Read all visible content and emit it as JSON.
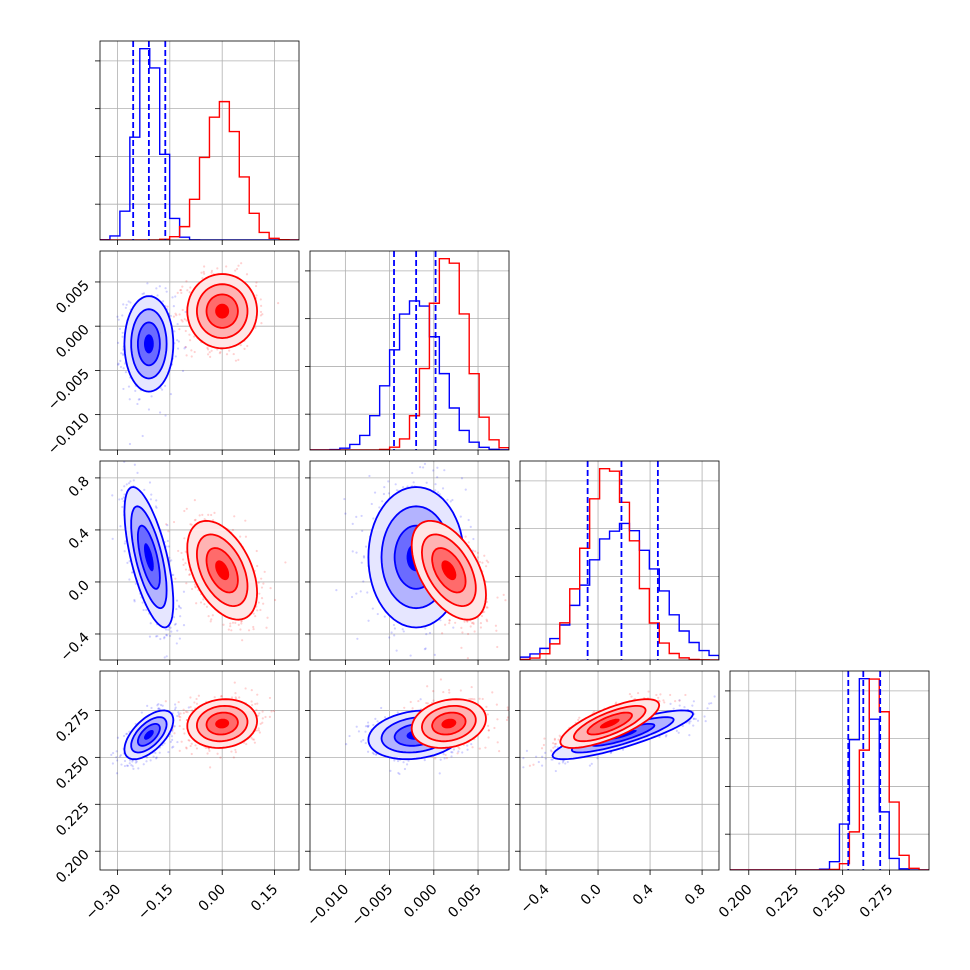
{
  "chart_data": {
    "type": "corner",
    "series": [
      {
        "name": "",
        "color": "#0000ff"
      },
      {
        "name": "",
        "color": "#ff0000"
      }
    ],
    "params": [
      {
        "range": [
          -0.35,
          0.22
        ],
        "ticks": [
          -0.3,
          -0.15,
          0.0,
          0.15
        ],
        "tick_labels": [
          "−0.30",
          "−0.15",
          "0.00",
          "0.15"
        ],
        "blue": {
          "mean": -0.21,
          "sd": 0.035,
          "q": [
            -0.255,
            -0.21,
            -0.163
          ]
        },
        "red": {
          "mean": 0.0,
          "sd": 0.05
        }
      },
      {
        "range": [
          -0.014,
          0.0085
        ],
        "ticks": [
          -0.01,
          -0.005,
          0.0,
          0.005
        ],
        "tick_labels": [
          "−0.010",
          "−0.005",
          "0.000",
          "0.005"
        ],
        "blue": {
          "mean": -0.002,
          "sd": 0.0027,
          "q": [
            -0.0045,
            -0.002,
            0.0002
          ]
        },
        "red": {
          "mean": 0.0017,
          "sd": 0.0021
        }
      },
      {
        "range": [
          -0.6,
          0.93
        ],
        "ticks": [
          -0.4,
          0.0,
          0.4,
          0.8
        ],
        "tick_labels": [
          "−0.4",
          "0.0",
          "0.4",
          "0.8"
        ],
        "blue": {
          "mean": 0.19,
          "sd": 0.27,
          "q": [
            -0.08,
            0.18,
            0.46
          ]
        },
        "red": {
          "mean": 0.09,
          "sd": 0.19
        }
      },
      {
        "range": [
          0.19,
          0.296
        ],
        "ticks": [
          0.2,
          0.225,
          0.25,
          0.275
        ],
        "tick_labels": [
          "0.200",
          "0.225",
          "0.250",
          "0.275"
        ],
        "blue": {
          "mean": 0.262,
          "sd": 0.0065,
          "q": [
            0.253,
            0.261,
            0.27
          ]
        },
        "red": {
          "mean": 0.268,
          "sd": 0.0065
        }
      }
    ],
    "correlations": {
      "blue": {
        "1-0": 0.0,
        "2-0": -0.65,
        "2-1": 0.0,
        "3-0": 0.6,
        "3-1": 0.2,
        "3-2": 0.85
      },
      "red": {
        "1-0": 0.0,
        "2-0": -0.45,
        "2-1": -0.5,
        "3-0": 0.1,
        "3-1": 0.2,
        "3-2": 0.75
      }
    },
    "quantile_lines": "dashed",
    "contour_levels": [
      "0.5 sigma",
      "1 sigma",
      "1.5 sigma",
      "2 sigma"
    ],
    "grid": true
  }
}
